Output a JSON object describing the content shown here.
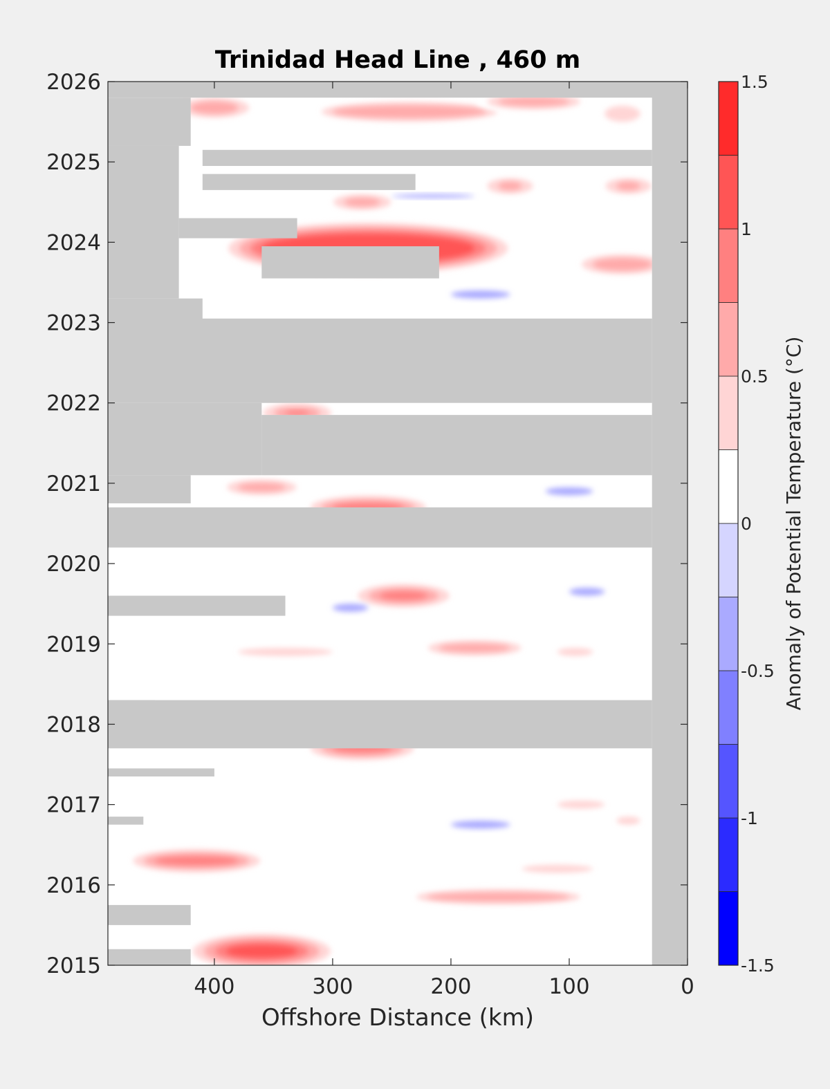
{
  "chart_data": {
    "type": "heatmap",
    "title": "Trinidad Head Line , 460 m",
    "xlabel": "Offshore Distance (km)",
    "ylabel": "",
    "x_reversed": true,
    "xlim": [
      490,
      0
    ],
    "ylim": [
      2015,
      2026
    ],
    "x_ticks": [
      400,
      300,
      200,
      100,
      0
    ],
    "y_ticks": [
      2015,
      2016,
      2017,
      2018,
      2019,
      2020,
      2021,
      2022,
      2023,
      2024,
      2025,
      2026
    ],
    "colorbar": {
      "label": "Anomaly of Potential Temperature (°C)",
      "range": [
        -1.5,
        1.5
      ],
      "levels": [
        -1.5,
        -1.25,
        -1.0,
        -0.75,
        -0.5,
        -0.25,
        0.0,
        0.25,
        0.5,
        0.75,
        1.0,
        1.25,
        1.5
      ],
      "tick_values": [
        -1.5,
        -1,
        -0.5,
        0,
        0.5,
        1,
        1.5
      ],
      "tick_labels": [
        "-1.5",
        "-1",
        "-0.5",
        "0",
        "0.5",
        "1",
        "1.5"
      ],
      "colors": [
        "#0000ff",
        "#2b2bff",
        "#5555ff",
        "#8080ff",
        "#aaaaff",
        "#d5d5ff",
        "#ffffff",
        "#ffffff",
        "#ffd5d5",
        "#ffaaaa",
        "#ff8080",
        "#ff5555",
        "#ff2b2b",
        "#ff0000"
      ]
    },
    "missing_color": "#c8c8c8",
    "missing_data": [
      {
        "x": [
          490,
          0
        ],
        "y": [
          2025.8,
          2026.0
        ]
      },
      {
        "x": [
          30,
          0
        ],
        "y": [
          2015.0,
          2026.0
        ]
      },
      {
        "x": [
          490,
          420
        ],
        "y": [
          2025.2,
          2025.8
        ]
      },
      {
        "x": [
          490,
          430
        ],
        "y": [
          2023.3,
          2025.2
        ]
      },
      {
        "x": [
          490,
          410
        ],
        "y": [
          2023.0,
          2023.3
        ]
      },
      {
        "x": [
          410,
          30
        ],
        "y": [
          2024.95,
          2025.15
        ]
      },
      {
        "x": [
          410,
          230
        ],
        "y": [
          2024.65,
          2024.85
        ]
      },
      {
        "x": [
          430,
          330
        ],
        "y": [
          2024.05,
          2024.3
        ]
      },
      {
        "x": [
          360,
          210
        ],
        "y": [
          2023.55,
          2023.95
        ]
      },
      {
        "x": [
          490,
          30
        ],
        "y": [
          2022.0,
          2023.05
        ]
      },
      {
        "x": [
          490,
          360
        ],
        "y": [
          2021.1,
          2022.0
        ]
      },
      {
        "x": [
          360,
          30
        ],
        "y": [
          2021.1,
          2021.85
        ]
      },
      {
        "x": [
          490,
          420
        ],
        "y": [
          2020.75,
          2021.1
        ]
      },
      {
        "x": [
          490,
          30
        ],
        "y": [
          2020.2,
          2020.7
        ]
      },
      {
        "x": [
          490,
          340
        ],
        "y": [
          2019.35,
          2019.6
        ]
      },
      {
        "x": [
          490,
          450
        ],
        "y": [
          2018.15,
          2018.3
        ]
      },
      {
        "x": [
          490,
          30
        ],
        "y": [
          2017.7,
          2018.3
        ]
      },
      {
        "x": [
          490,
          400
        ],
        "y": [
          2017.35,
          2017.45
        ]
      },
      {
        "x": [
          490,
          460
        ],
        "y": [
          2016.75,
          2016.85
        ]
      },
      {
        "x": [
          490,
          420
        ],
        "y": [
          2015.5,
          2015.75
        ]
      },
      {
        "x": [
          490,
          420
        ],
        "y": [
          2015.0,
          2015.2
        ]
      }
    ],
    "anomalies": [
      {
        "x": [
          300,
          170
        ],
        "y": [
          2025.55,
          2025.7
        ],
        "value": 0.9
      },
      {
        "x": [
          160,
          100
        ],
        "y": [
          2025.7,
          2025.8
        ],
        "value": 0.8
      },
      {
        "x": [
          420,
          380
        ],
        "y": [
          2025.6,
          2025.75
        ],
        "value": 0.8
      },
      {
        "x": [
          70,
          40
        ],
        "y": [
          2025.5,
          2025.7
        ],
        "value": 0.6
      },
      {
        "x": [
          160,
          140
        ],
        "y": [
          2024.65,
          2024.75
        ],
        "value": 0.8
      },
      {
        "x": [
          60,
          40
        ],
        "y": [
          2024.65,
          2024.75
        ],
        "value": 0.8
      },
      {
        "x": [
          290,
          260
        ],
        "y": [
          2024.45,
          2024.55
        ],
        "value": 0.8
      },
      {
        "x": [
          360,
          180
        ],
        "y": [
          2023.75,
          2024.1
        ],
        "value": 1.4
      },
      {
        "x": [
          80,
          30
        ],
        "y": [
          2023.65,
          2023.8
        ],
        "value": 0.8
      },
      {
        "x": [
          340,
          320
        ],
        "y": [
          2021.85,
          2021.9
        ],
        "value": 1.0
      },
      {
        "x": [
          380,
          340
        ],
        "y": [
          2020.9,
          2021.0
        ],
        "value": 0.8
      },
      {
        "x": [
          300,
          240
        ],
        "y": [
          2020.65,
          2020.75
        ],
        "value": 1.0
      },
      {
        "x": [
          260,
          220
        ],
        "y": [
          2019.55,
          2019.65
        ],
        "value": 1.2
      },
      {
        "x": [
          210,
          150
        ],
        "y": [
          2018.9,
          2019.0
        ],
        "value": 0.9
      },
      {
        "x": [
          110,
          80
        ],
        "y": [
          2018.85,
          2018.95
        ],
        "value": 0.7
      },
      {
        "x": [
          380,
          300
        ],
        "y": [
          2018.85,
          2018.95
        ],
        "value": 0.6
      },
      {
        "x": [
          300,
          250
        ],
        "y": [
          2017.65,
          2017.75
        ],
        "value": 1.0
      },
      {
        "x": [
          450,
          380
        ],
        "y": [
          2016.25,
          2016.35
        ],
        "value": 1.2
      },
      {
        "x": [
          220,
          100
        ],
        "y": [
          2015.8,
          2015.9
        ],
        "value": 0.9
      },
      {
        "x": [
          140,
          80
        ],
        "y": [
          2016.15,
          2016.25
        ],
        "value": 0.7
      },
      {
        "x": [
          390,
          330
        ],
        "y": [
          2015.1,
          2015.25
        ],
        "value": 1.3
      },
      {
        "x": [
          110,
          70
        ],
        "y": [
          2016.95,
          2017.05
        ],
        "value": 0.6
      },
      {
        "x": [
          60,
          40
        ],
        "y": [
          2016.75,
          2016.85
        ],
        "value": 0.6
      },
      {
        "x": [
          250,
          180
        ],
        "y": [
          2024.55,
          2024.6
        ],
        "value": -0.3
      },
      {
        "x": [
          300,
          270
        ],
        "y": [
          2019.4,
          2019.5
        ],
        "value": -0.3
      },
      {
        "x": [
          100,
          70
        ],
        "y": [
          2019.6,
          2019.7
        ],
        "value": -0.3
      },
      {
        "x": [
          200,
          150
        ],
        "y": [
          2023.3,
          2023.4
        ],
        "value": -0.3
      },
      {
        "x": [
          120,
          80
        ],
        "y": [
          2020.85,
          2020.95
        ],
        "value": -0.3
      },
      {
        "x": [
          200,
          150
        ],
        "y": [
          2016.7,
          2016.8
        ],
        "value": -0.3
      }
    ]
  }
}
